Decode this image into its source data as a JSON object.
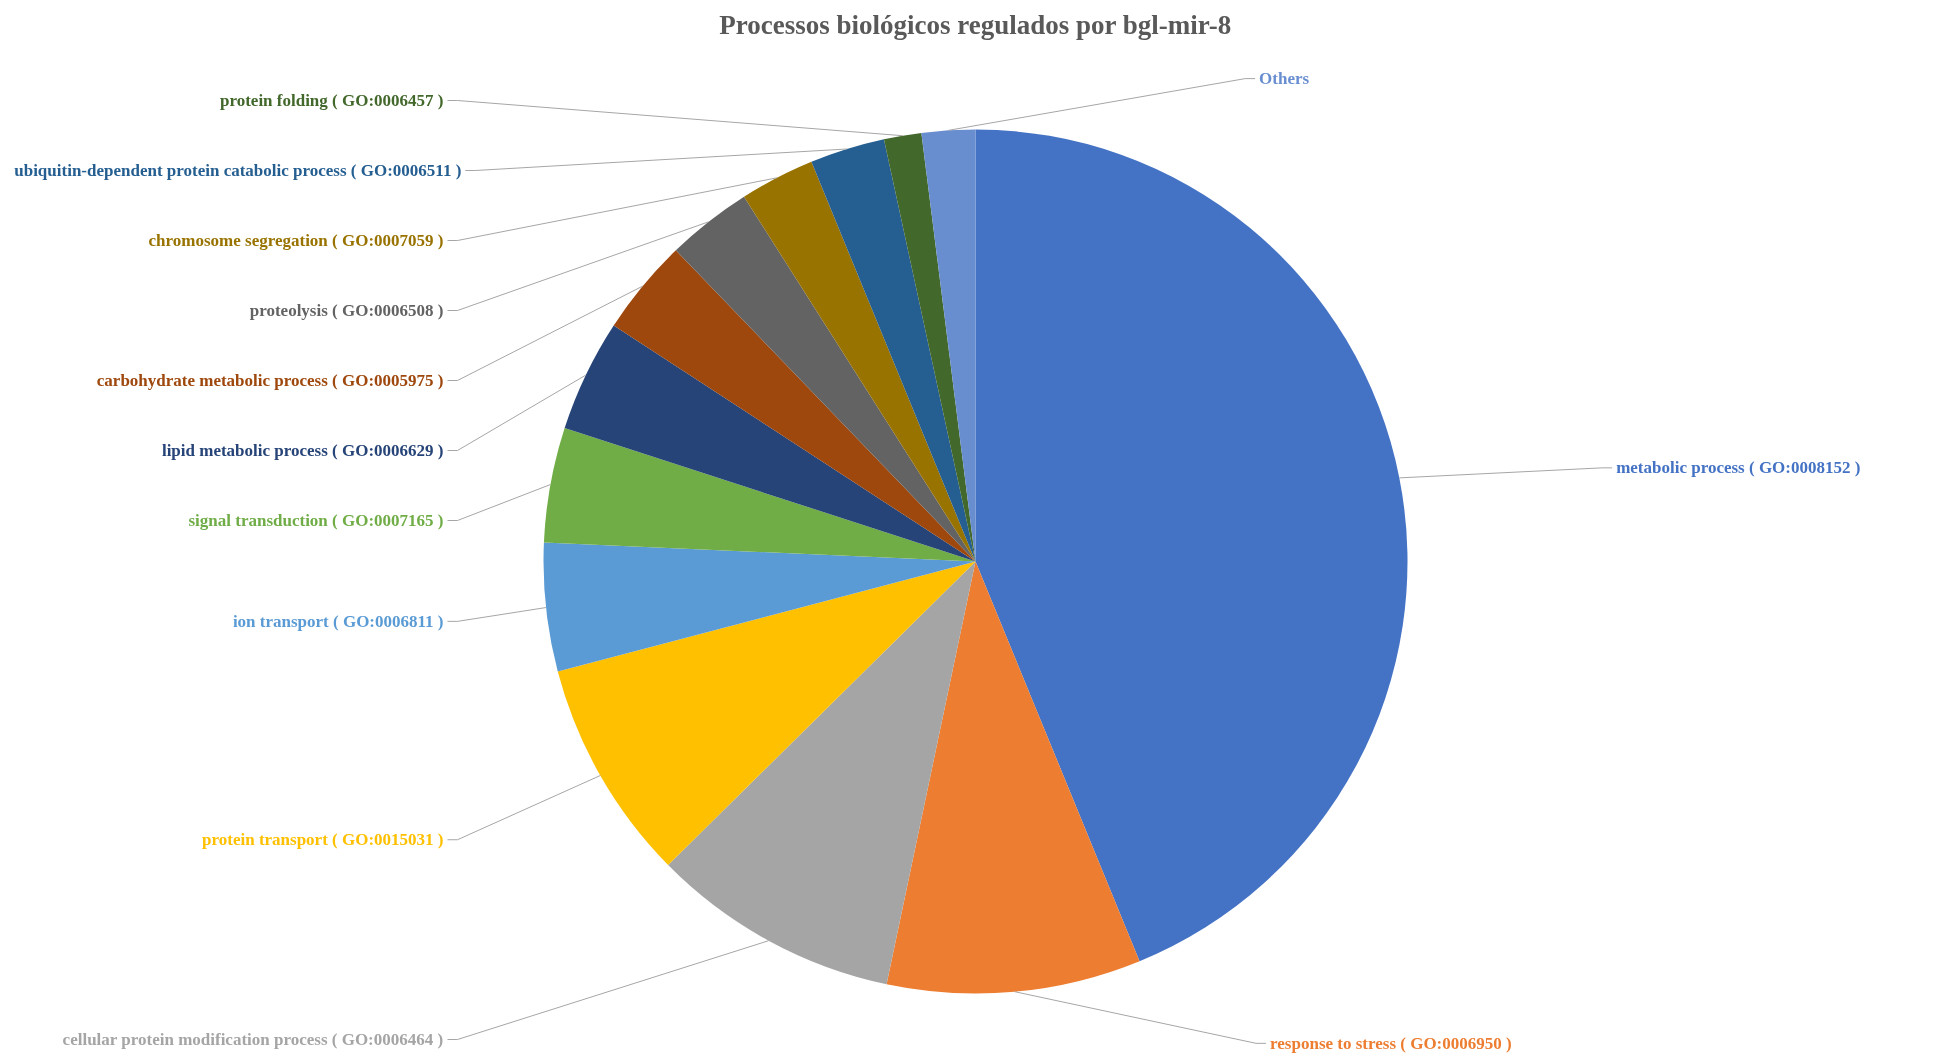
{
  "chart_data": {
    "type": "pie",
    "title": "Processos biológicos regulados por bgl-mir-8",
    "categories": [
      "metabolic process ( GO:0008152 )",
      "response to stress ( GO:0006950 )",
      "cellular protein modification process ( GO:0006464 )",
      "protein transport ( GO:0015031 )",
      "ion transport ( GO:0006811 )",
      "signal transduction ( GO:0007165 )",
      "lipid metabolic process ( GO:0006629 )",
      "carbohydrate metabolic process ( GO:0005975 )",
      "proteolysis ( GO:0006508 )",
      "chromosome segregation ( GO:0007059 )",
      "ubiquitin-dependent protein catabolic process ( GO:0006511 )",
      "protein folding ( GO:0006457 )",
      "Others"
    ],
    "values": [
      43.8,
      9.5,
      9.3,
      8.3,
      4.8,
      4.3,
      4.2,
      3.6,
      3.2,
      2.8,
      2.8,
      1.4,
      2.0
    ],
    "colors": [
      "#4472c4",
      "#ed7d31",
      "#a5a5a5",
      "#ffc000",
      "#5b9bd5",
      "#70ad47",
      "#264478",
      "#9e480e",
      "#636363",
      "#997300",
      "#255e91",
      "#43682b",
      "#698ed0"
    ]
  }
}
